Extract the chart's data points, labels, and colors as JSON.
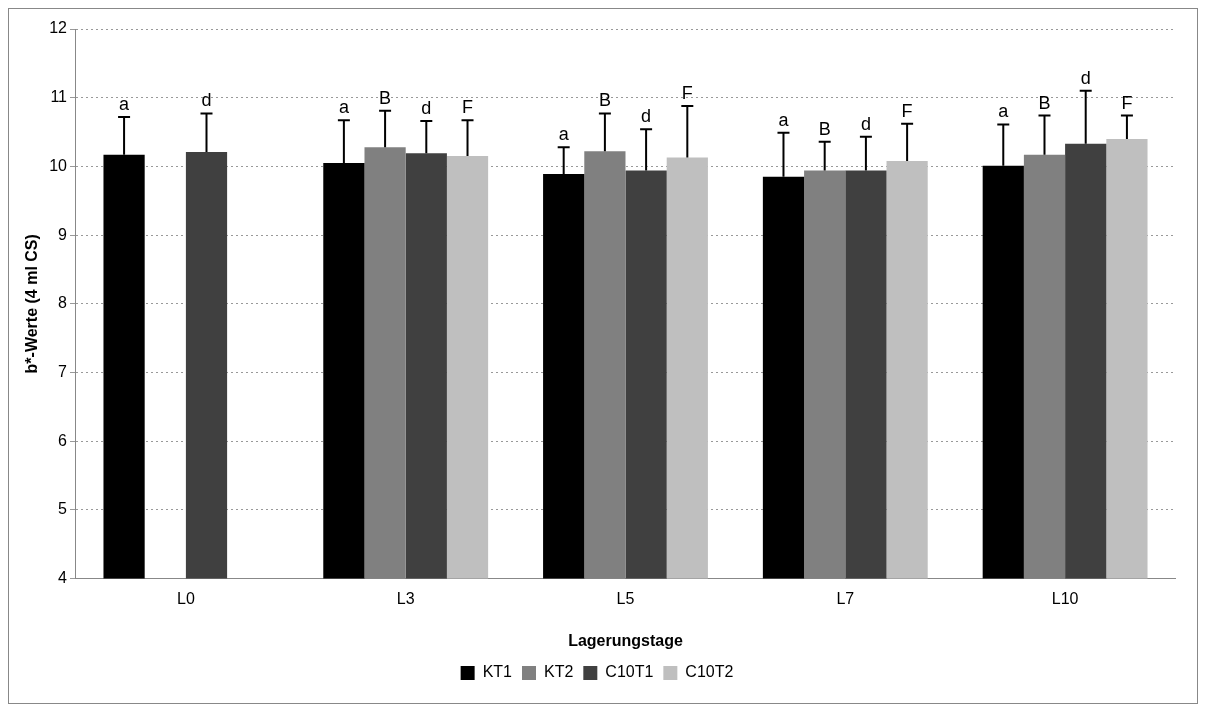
{
  "chart_data": {
    "type": "bar",
    "xlabel": "Lagerungstage",
    "ylabel": "b*-Werte (4 ml CS)",
    "categories": [
      "L0",
      "L3",
      "L5",
      "L7",
      "L10"
    ],
    "ylim": [
      4,
      12
    ],
    "yticks": [
      4,
      5,
      6,
      7,
      8,
      9,
      10,
      11,
      12
    ],
    "grid": "y",
    "legend": "bottom",
    "series": [
      {
        "name": "KT1",
        "color": "#000000",
        "values": [
          10.17,
          10.05,
          9.89,
          9.85,
          10.01
        ],
        "errors": [
          [
            10.17,
            10.72
          ],
          [
            10.05,
            10.67
          ],
          [
            9.89,
            10.28
          ],
          [
            9.85,
            10.49
          ],
          [
            10.01,
            10.61
          ]
        ],
        "value_labels": [
          "a",
          "a",
          "a",
          "a",
          "a"
        ]
      },
      {
        "name": "KT2",
        "color": "#808080",
        "values": [
          null,
          10.28,
          10.22,
          9.94,
          10.17
        ],
        "errors": [
          null,
          [
            10.28,
            10.81
          ],
          [
            10.22,
            10.77
          ],
          [
            9.94,
            10.36
          ],
          [
            10.17,
            10.74
          ]
        ],
        "value_labels": [
          null,
          "B",
          "B",
          "B",
          "B"
        ]
      },
      {
        "name": "C10T1",
        "color": "#404040",
        "values": [
          10.21,
          10.19,
          9.94,
          9.94,
          10.33
        ],
        "errors": [
          [
            10.21,
            10.77
          ],
          [
            10.19,
            10.66
          ],
          [
            9.94,
            10.54
          ],
          [
            9.94,
            10.43
          ],
          [
            10.33,
            11.1
          ]
        ],
        "value_labels": [
          "d",
          "d",
          "d",
          "d",
          "d"
        ]
      },
      {
        "name": "C10T2",
        "color": "#bfbfbf",
        "values": [
          null,
          10.15,
          10.13,
          10.08,
          10.4
        ],
        "errors": [
          null,
          [
            10.15,
            10.67
          ],
          [
            10.13,
            10.88
          ],
          [
            10.08,
            10.62
          ],
          [
            10.4,
            10.74
          ]
        ],
        "value_labels": [
          null,
          "F",
          "F",
          "F",
          "F"
        ]
      }
    ]
  }
}
